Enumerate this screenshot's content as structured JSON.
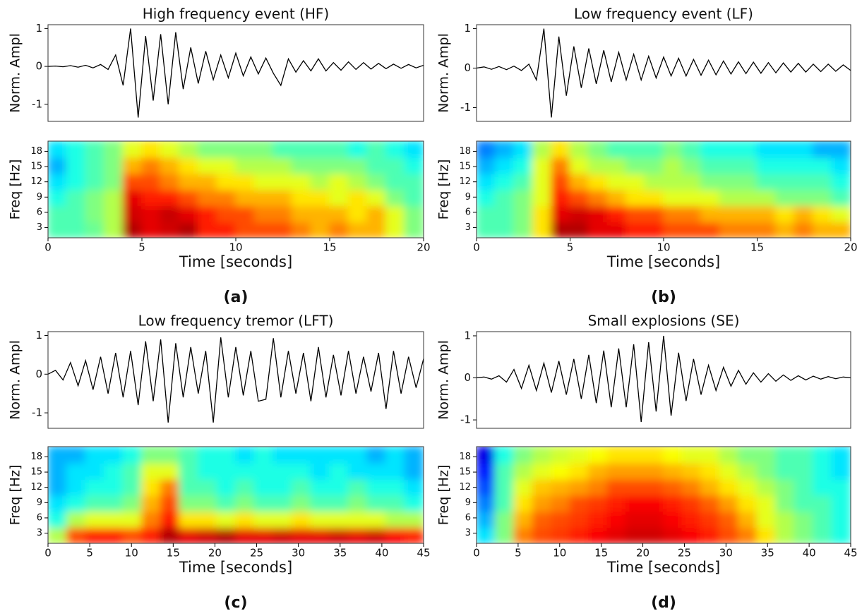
{
  "chart_data": [
    {
      "type": "line",
      "title": "High frequency event (HF)",
      "ylabel": "Norm. Ampl",
      "color": "#000000",
      "xlim": [
        0,
        20
      ],
      "ylim": [
        -1.45,
        1.1
      ],
      "yticks": [
        -1,
        0,
        1
      ],
      "x": [
        0,
        0.4,
        0.8,
        1.2,
        1.6,
        2.0,
        2.4,
        2.8,
        3.2,
        3.6,
        4.0,
        4.4,
        4.8,
        5.2,
        5.6,
        6.0,
        6.4,
        6.8,
        7.2,
        7.6,
        8.0,
        8.4,
        8.8,
        9.2,
        9.6,
        10.0,
        10.4,
        10.8,
        11.2,
        11.6,
        12.0,
        12.4,
        12.8,
        13.2,
        13.6,
        14.0,
        14.4,
        14.8,
        15.2,
        15.6,
        16.0,
        16.4,
        16.8,
        17.2,
        17.6,
        18.0,
        18.4,
        18.8,
        19.2,
        19.6,
        20.0
      ],
      "values": [
        0,
        0.01,
        -0.01,
        0.02,
        -0.02,
        0.03,
        -0.04,
        0.05,
        -0.08,
        0.3,
        -0.5,
        1.0,
        -1.35,
        0.8,
        -0.9,
        0.85,
        -1.0,
        0.9,
        -0.6,
        0.5,
        -0.45,
        0.4,
        -0.35,
        0.3,
        -0.3,
        0.35,
        -0.25,
        0.25,
        -0.2,
        0.22,
        -0.18,
        -0.5,
        0.2,
        -0.15,
        0.15,
        -0.12,
        0.2,
        -0.12,
        0.1,
        -0.1,
        0.12,
        -0.08,
        0.1,
        -0.07,
        0.08,
        -0.06,
        0.06,
        -0.05,
        0.05,
        -0.04,
        0.03
      ]
    },
    {
      "type": "heatmap",
      "ylabel": "Freq [Hz]",
      "xlabel": "Time [seconds]",
      "caption": "(a)",
      "colormap": "jet",
      "xlim": [
        0,
        20
      ],
      "xticks": [
        0,
        5,
        10,
        15,
        20
      ],
      "ylim": [
        1,
        20
      ],
      "yticks": [
        3,
        6,
        9,
        12,
        15,
        18
      ],
      "z": [
        [
          0.45,
          0.45,
          0.48,
          0.55,
          0.95,
          0.9,
          0.92,
          0.95,
          0.85,
          0.85,
          0.8,
          0.8,
          0.8,
          0.75,
          0.7,
          0.75,
          0.7,
          0.7,
          0.6,
          0.5
        ],
        [
          0.45,
          0.45,
          0.5,
          0.55,
          0.92,
          0.9,
          0.93,
          0.9,
          0.85,
          0.8,
          0.8,
          0.75,
          0.75,
          0.7,
          0.7,
          0.7,
          0.65,
          0.7,
          0.6,
          0.5
        ],
        [
          0.4,
          0.45,
          0.5,
          0.55,
          0.9,
          0.85,
          0.85,
          0.8,
          0.75,
          0.75,
          0.7,
          0.7,
          0.7,
          0.65,
          0.65,
          0.6,
          0.65,
          0.6,
          0.5,
          0.45
        ],
        [
          0.35,
          0.4,
          0.45,
          0.5,
          0.8,
          0.8,
          0.75,
          0.7,
          0.7,
          0.65,
          0.65,
          0.6,
          0.6,
          0.6,
          0.55,
          0.6,
          0.55,
          0.5,
          0.45,
          0.45
        ],
        [
          0.3,
          0.4,
          0.45,
          0.5,
          0.7,
          0.75,
          0.7,
          0.65,
          0.6,
          0.6,
          0.55,
          0.55,
          0.55,
          0.5,
          0.5,
          0.5,
          0.5,
          0.45,
          0.45,
          0.4
        ],
        [
          0.35,
          0.4,
          0.45,
          0.5,
          0.6,
          0.65,
          0.6,
          0.55,
          0.5,
          0.5,
          0.5,
          0.5,
          0.45,
          0.45,
          0.45,
          0.45,
          0.4,
          0.45,
          0.4,
          0.35
        ]
      ]
    },
    {
      "type": "line",
      "title": "Low frequency event (LF)",
      "ylabel": "Norm. Ampl",
      "color": "#000000",
      "xlim": [
        0,
        20
      ],
      "ylim": [
        -1.35,
        1.1
      ],
      "yticks": [
        -1,
        0,
        1
      ],
      "x": [
        0,
        0.4,
        0.8,
        1.2,
        1.6,
        2.0,
        2.4,
        2.8,
        3.2,
        3.6,
        4.0,
        4.4,
        4.8,
        5.2,
        5.6,
        6.0,
        6.4,
        6.8,
        7.2,
        7.6,
        8.0,
        8.4,
        8.8,
        9.2,
        9.6,
        10.0,
        10.4,
        10.8,
        11.2,
        11.6,
        12.0,
        12.4,
        12.8,
        13.2,
        13.6,
        14.0,
        14.4,
        14.8,
        15.2,
        15.6,
        16.0,
        16.4,
        16.8,
        17.2,
        17.6,
        18.0,
        18.4,
        18.8,
        19.2,
        19.6,
        20.0
      ],
      "values": [
        0,
        0.03,
        -0.03,
        0.04,
        -0.04,
        0.05,
        -0.06,
        0.1,
        -0.3,
        1.0,
        -1.25,
        0.8,
        -0.7,
        0.55,
        -0.5,
        0.5,
        -0.4,
        0.45,
        -0.35,
        0.4,
        -0.3,
        0.35,
        -0.3,
        0.3,
        -0.25,
        0.28,
        -0.2,
        0.25,
        -0.2,
        0.22,
        -0.18,
        0.2,
        -0.17,
        0.18,
        -0.15,
        0.16,
        -0.14,
        0.15,
        -0.13,
        0.14,
        -0.12,
        0.13,
        -0.1,
        0.12,
        -0.1,
        0.1,
        -0.09,
        0.1,
        -0.08,
        0.08,
        -0.06
      ]
    },
    {
      "type": "heatmap",
      "ylabel": "Freq [Hz]",
      "xlabel": "Time [seconds]",
      "caption": "(b)",
      "colormap": "jet",
      "xlim": [
        0,
        20
      ],
      "xticks": [
        0,
        5,
        10,
        15,
        20
      ],
      "ylim": [
        1,
        20
      ],
      "yticks": [
        3,
        6,
        9,
        12,
        15,
        18
      ],
      "z": [
        [
          0.45,
          0.45,
          0.5,
          0.65,
          0.95,
          0.95,
          0.9,
          0.9,
          0.85,
          0.85,
          0.8,
          0.8,
          0.8,
          0.75,
          0.75,
          0.75,
          0.7,
          0.75,
          0.7,
          0.7
        ],
        [
          0.45,
          0.45,
          0.5,
          0.65,
          0.9,
          0.92,
          0.9,
          0.85,
          0.8,
          0.8,
          0.75,
          0.75,
          0.7,
          0.7,
          0.7,
          0.7,
          0.65,
          0.7,
          0.65,
          0.6
        ],
        [
          0.4,
          0.45,
          0.5,
          0.6,
          0.85,
          0.8,
          0.75,
          0.7,
          0.65,
          0.65,
          0.6,
          0.6,
          0.6,
          0.55,
          0.55,
          0.55,
          0.5,
          0.5,
          0.5,
          0.45
        ],
        [
          0.35,
          0.4,
          0.45,
          0.6,
          0.8,
          0.7,
          0.65,
          0.6,
          0.6,
          0.55,
          0.55,
          0.55,
          0.5,
          0.5,
          0.5,
          0.45,
          0.45,
          0.45,
          0.45,
          0.4
        ],
        [
          0.3,
          0.35,
          0.4,
          0.6,
          0.75,
          0.6,
          0.55,
          0.55,
          0.5,
          0.5,
          0.55,
          0.5,
          0.45,
          0.45,
          0.45,
          0.4,
          0.4,
          0.4,
          0.4,
          0.35
        ],
        [
          0.25,
          0.3,
          0.35,
          0.55,
          0.65,
          0.55,
          0.5,
          0.45,
          0.45,
          0.45,
          0.5,
          0.45,
          0.4,
          0.4,
          0.4,
          0.35,
          0.35,
          0.35,
          0.3,
          0.3
        ]
      ]
    },
    {
      "type": "line",
      "title": "Low frequency tremor (LFT)",
      "ylabel": "Norm. Ampl",
      "color": "#000000",
      "xlim": [
        0,
        45
      ],
      "ylim": [
        -1.4,
        1.1
      ],
      "yticks": [
        -1,
        0,
        1
      ],
      "x": [
        0,
        0.9,
        1.8,
        2.7,
        3.6,
        4.5,
        5.4,
        6.3,
        7.2,
        8.1,
        9,
        9.9,
        10.8,
        11.7,
        12.6,
        13.5,
        14.4,
        15.3,
        16.2,
        17.1,
        18,
        18.9,
        19.8,
        20.7,
        21.6,
        22.5,
        23.4,
        24.3,
        25.2,
        26.1,
        27,
        27.9,
        28.8,
        29.7,
        30.6,
        31.5,
        32.4,
        33.3,
        34.2,
        35.1,
        36,
        36.9,
        37.8,
        38.7,
        39.6,
        40.5,
        41.4,
        42.3,
        43.2,
        44.1,
        45
      ],
      "values": [
        0,
        0.1,
        -0.15,
        0.3,
        -0.3,
        0.35,
        -0.4,
        0.45,
        -0.5,
        0.55,
        -0.6,
        0.6,
        -0.8,
        0.85,
        -0.7,
        0.9,
        -1.25,
        0.8,
        -0.6,
        0.7,
        -0.5,
        0.6,
        -1.25,
        0.95,
        -0.6,
        0.7,
        -0.55,
        0.6,
        -0.7,
        -0.65,
        0.93,
        -0.6,
        0.6,
        -0.5,
        0.55,
        -0.7,
        0.7,
        -0.6,
        0.5,
        -0.55,
        0.6,
        -0.5,
        0.45,
        -0.45,
        0.55,
        -0.9,
        0.6,
        -0.5,
        0.45,
        -0.35,
        0.4
      ]
    },
    {
      "type": "heatmap",
      "ylabel": "Freq [Hz]",
      "xlabel": "Time [seconds]",
      "caption": "(c)",
      "colormap": "jet",
      "xlim": [
        0,
        45
      ],
      "xticks": [
        0,
        5,
        10,
        15,
        20,
        25,
        30,
        35,
        40,
        45
      ],
      "ylim": [
        1,
        20
      ],
      "yticks": [
        3,
        6,
        9,
        12,
        15,
        18
      ],
      "z": [
        [
          0.55,
          0.8,
          0.85,
          0.85,
          0.8,
          0.85,
          0.95,
          0.9,
          0.92,
          0.95,
          0.9,
          0.9,
          0.92,
          0.9,
          0.9,
          0.92,
          0.9,
          0.92,
          0.88,
          0.85
        ],
        [
          0.4,
          0.55,
          0.6,
          0.6,
          0.6,
          0.75,
          0.85,
          0.65,
          0.65,
          0.6,
          0.65,
          0.6,
          0.6,
          0.65,
          0.6,
          0.6,
          0.6,
          0.6,
          0.55,
          0.55
        ],
        [
          0.35,
          0.4,
          0.45,
          0.45,
          0.5,
          0.7,
          0.8,
          0.5,
          0.5,
          0.45,
          0.5,
          0.45,
          0.45,
          0.5,
          0.45,
          0.45,
          0.5,
          0.45,
          0.45,
          0.4
        ],
        [
          0.3,
          0.35,
          0.4,
          0.4,
          0.45,
          0.65,
          0.75,
          0.45,
          0.45,
          0.4,
          0.45,
          0.4,
          0.4,
          0.45,
          0.4,
          0.4,
          0.45,
          0.4,
          0.4,
          0.35
        ],
        [
          0.3,
          0.35,
          0.35,
          0.4,
          0.45,
          0.6,
          0.6,
          0.45,
          0.4,
          0.4,
          0.4,
          0.4,
          0.4,
          0.4,
          0.35,
          0.4,
          0.35,
          0.35,
          0.35,
          0.3
        ],
        [
          0.3,
          0.3,
          0.35,
          0.35,
          0.4,
          0.5,
          0.5,
          0.45,
          0.4,
          0.4,
          0.35,
          0.4,
          0.35,
          0.35,
          0.35,
          0.35,
          0.35,
          0.3,
          0.35,
          0.3
        ]
      ]
    },
    {
      "type": "line",
      "title": "Small explosions (SE)",
      "ylabel": "Norm. Ampl",
      "color": "#000000",
      "xlim": [
        0,
        45
      ],
      "ylim": [
        -1.2,
        1.1
      ],
      "yticks": [
        -1,
        0,
        1
      ],
      "x": [
        0,
        0.9,
        1.8,
        2.7,
        3.6,
        4.5,
        5.4,
        6.3,
        7.2,
        8.1,
        9,
        9.9,
        10.8,
        11.7,
        12.6,
        13.5,
        14.4,
        15.3,
        16.2,
        17.1,
        18,
        18.9,
        19.8,
        20.7,
        21.6,
        22.5,
        23.4,
        24.3,
        25.2,
        26.1,
        27,
        27.9,
        28.8,
        29.7,
        30.6,
        31.5,
        32.4,
        33.3,
        34.2,
        35.1,
        36,
        36.9,
        37.8,
        38.7,
        39.6,
        40.5,
        41.4,
        42.3,
        43.2,
        44.1,
        45
      ],
      "values": [
        0,
        0.02,
        -0.03,
        0.05,
        -0.1,
        0.2,
        -0.25,
        0.3,
        -0.3,
        0.35,
        -0.35,
        0.4,
        -0.4,
        0.45,
        -0.5,
        0.55,
        -0.6,
        0.65,
        -0.7,
        0.7,
        -0.7,
        0.8,
        -1.05,
        0.85,
        -0.8,
        1.0,
        -0.9,
        0.6,
        -0.55,
        0.45,
        -0.4,
        0.3,
        -0.3,
        0.25,
        -0.2,
        0.18,
        -0.15,
        0.12,
        -0.1,
        0.1,
        -0.08,
        0.07,
        -0.06,
        0.05,
        -0.05,
        0.04,
        -0.03,
        0.03,
        -0.02,
        0.02,
        0
      ]
    },
    {
      "type": "heatmap",
      "ylabel": "Freq [Hz]",
      "xlabel": "Time [seconds]",
      "caption": "(d)",
      "colormap": "jet",
      "xlim": [
        0,
        45
      ],
      "xticks": [
        0,
        5,
        10,
        15,
        20,
        25,
        30,
        35,
        40,
        45
      ],
      "ylim": [
        1,
        20
      ],
      "yticks": [
        3,
        6,
        9,
        12,
        15,
        18
      ],
      "z": [
        [
          0.35,
          0.5,
          0.75,
          0.8,
          0.82,
          0.85,
          0.88,
          0.9,
          0.92,
          0.92,
          0.9,
          0.88,
          0.85,
          0.8,
          0.75,
          0.65,
          0.55,
          0.5,
          0.45,
          0.4
        ],
        [
          0.3,
          0.5,
          0.7,
          0.78,
          0.8,
          0.82,
          0.85,
          0.88,
          0.9,
          0.9,
          0.88,
          0.85,
          0.82,
          0.78,
          0.7,
          0.6,
          0.55,
          0.5,
          0.45,
          0.4
        ],
        [
          0.25,
          0.45,
          0.65,
          0.72,
          0.75,
          0.8,
          0.82,
          0.85,
          0.88,
          0.88,
          0.85,
          0.82,
          0.78,
          0.72,
          0.65,
          0.6,
          0.5,
          0.45,
          0.45,
          0.4
        ],
        [
          0.2,
          0.45,
          0.6,
          0.68,
          0.7,
          0.72,
          0.75,
          0.8,
          0.8,
          0.8,
          0.78,
          0.75,
          0.7,
          0.65,
          0.6,
          0.55,
          0.5,
          0.45,
          0.4,
          0.4
        ],
        [
          0.15,
          0.45,
          0.55,
          0.6,
          0.62,
          0.65,
          0.7,
          0.72,
          0.72,
          0.72,
          0.7,
          0.68,
          0.65,
          0.6,
          0.55,
          0.5,
          0.45,
          0.45,
          0.4,
          0.35
        ],
        [
          0.1,
          0.4,
          0.5,
          0.55,
          0.58,
          0.6,
          0.62,
          0.65,
          0.65,
          0.65,
          0.62,
          0.6,
          0.6,
          0.55,
          0.5,
          0.5,
          0.45,
          0.45,
          0.4,
          0.35
        ]
      ]
    }
  ]
}
